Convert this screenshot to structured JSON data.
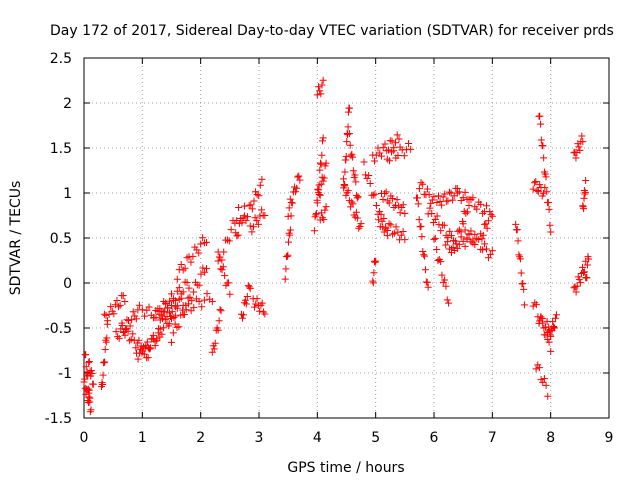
{
  "chart_data": {
    "type": "scatter",
    "title": "Day 172 of 2017, Sidereal Day-to-day VTEC variation (SDTVAR) for receiver prds",
    "xlabel": "GPS time / hours",
    "ylabel": "SDTVAR / TECUs",
    "xlim": [
      0,
      9
    ],
    "ylim": [
      -1.5,
      2.5
    ],
    "xticks": [
      "0",
      "1",
      "2",
      "3",
      "4",
      "5",
      "6",
      "7",
      "8",
      "9"
    ],
    "yticks": [
      "-1.5",
      "-1",
      "-0.5",
      "0",
      "0.5",
      "1",
      "1.5",
      "2",
      "2.5"
    ],
    "grid": true,
    "marker": "+",
    "color": "#ff0000",
    "series": [
      {
        "name": "SDTVAR",
        "x": [],
        "y": [],
        "segments": [
          [
            0.0,
            -1.1,
            0.12,
            -1.4,
            12
          ],
          [
            0.02,
            -0.8,
            0.1,
            -1.3,
            10
          ],
          [
            0.08,
            -0.9,
            0.16,
            -1.1,
            8
          ],
          [
            0.3,
            -1.2,
            0.4,
            -0.5,
            12
          ],
          [
            0.35,
            -0.4,
            0.7,
            -0.15,
            14
          ],
          [
            0.55,
            -0.6,
            0.95,
            -0.3,
            16
          ],
          [
            0.65,
            -0.5,
            1.1,
            -0.8,
            18
          ],
          [
            0.9,
            -0.8,
            1.3,
            -0.6,
            16
          ],
          [
            1.1,
            -0.7,
            1.6,
            -0.3,
            18
          ],
          [
            1.2,
            -0.35,
            1.7,
            -0.2,
            16
          ],
          [
            1.0,
            -0.3,
            1.5,
            -0.4,
            14
          ],
          [
            1.3,
            -0.3,
            1.8,
            0.0,
            16
          ],
          [
            1.5,
            -0.6,
            2.1,
            0.2,
            20
          ],
          [
            1.6,
            0.1,
            2.1,
            0.5,
            16
          ],
          [
            1.7,
            -0.3,
            2.2,
            -0.15,
            12
          ],
          [
            2.2,
            -0.8,
            2.35,
            -0.3,
            10
          ],
          [
            2.3,
            0.3,
            2.5,
            -0.1,
            10
          ],
          [
            2.3,
            0.2,
            2.65,
            0.8,
            12
          ],
          [
            2.6,
            0.5,
            2.75,
            0.8,
            8
          ],
          [
            2.7,
            -0.4,
            2.85,
            0.0,
            10
          ],
          [
            2.75,
            0.7,
            3.05,
            1.1,
            12
          ],
          [
            2.85,
            0.6,
            3.1,
            0.8,
            10
          ],
          [
            2.9,
            -0.2,
            3.1,
            -0.3,
            10
          ],
          [
            3.45,
            0.1,
            3.55,
            0.7,
            10
          ],
          [
            3.5,
            0.8,
            3.7,
            1.2,
            12
          ],
          [
            3.95,
            0.6,
            4.1,
            1.6,
            14
          ],
          [
            4.0,
            0.9,
            4.15,
            1.3,
            10
          ],
          [
            4.0,
            2.1,
            4.1,
            2.2,
            6
          ],
          [
            4.05,
            0.7,
            4.15,
            0.8,
            6
          ],
          [
            4.45,
            1.0,
            4.55,
            2.0,
            14
          ],
          [
            4.45,
            1.1,
            4.75,
            0.6,
            16
          ],
          [
            4.55,
            1.6,
            4.7,
            0.9,
            12
          ],
          [
            4.8,
            1.3,
            5.2,
            0.5,
            16
          ],
          [
            4.95,
            0.0,
            5.0,
            0.3,
            6
          ],
          [
            4.95,
            1.4,
            5.4,
            1.6,
            16
          ],
          [
            5.05,
            0.7,
            5.5,
            0.5,
            16
          ],
          [
            5.1,
            1.0,
            5.5,
            0.8,
            16
          ],
          [
            5.2,
            1.4,
            5.6,
            1.5,
            12
          ],
          [
            5.7,
            1.0,
            5.9,
            -0.1,
            14
          ],
          [
            5.75,
            1.1,
            6.0,
            0.9,
            10
          ],
          [
            5.9,
            0.8,
            6.3,
            0.5,
            14
          ],
          [
            6.0,
            0.5,
            6.25,
            -0.2,
            12
          ],
          [
            6.05,
            0.9,
            6.4,
            1.0,
            14
          ],
          [
            6.2,
            0.4,
            6.7,
            0.5,
            16
          ],
          [
            6.3,
            0.3,
            6.6,
            0.9,
            12
          ],
          [
            6.4,
            1.0,
            6.9,
            0.8,
            16
          ],
          [
            6.5,
            0.6,
            7.0,
            0.3,
            16
          ],
          [
            6.8,
            0.5,
            7.0,
            0.8,
            10
          ],
          [
            7.4,
            0.7,
            7.55,
            -0.2,
            12
          ],
          [
            7.8,
            1.9,
            8.0,
            0.6,
            16
          ],
          [
            7.7,
            1.1,
            7.9,
            1.0,
            10
          ],
          [
            7.7,
            -0.2,
            8.0,
            -0.7,
            12
          ],
          [
            7.75,
            -0.9,
            7.95,
            -1.2,
            8
          ],
          [
            7.8,
            -0.4,
            8.05,
            -0.55,
            10
          ],
          [
            7.95,
            -0.6,
            8.1,
            -0.4,
            10
          ],
          [
            8.4,
            1.4,
            8.55,
            1.6,
            10
          ],
          [
            8.4,
            -0.1,
            8.6,
            0.2,
            12
          ],
          [
            8.55,
            0.8,
            8.6,
            1.1,
            8
          ],
          [
            8.6,
            0.0,
            8.65,
            0.3,
            6
          ]
        ]
      }
    ]
  }
}
